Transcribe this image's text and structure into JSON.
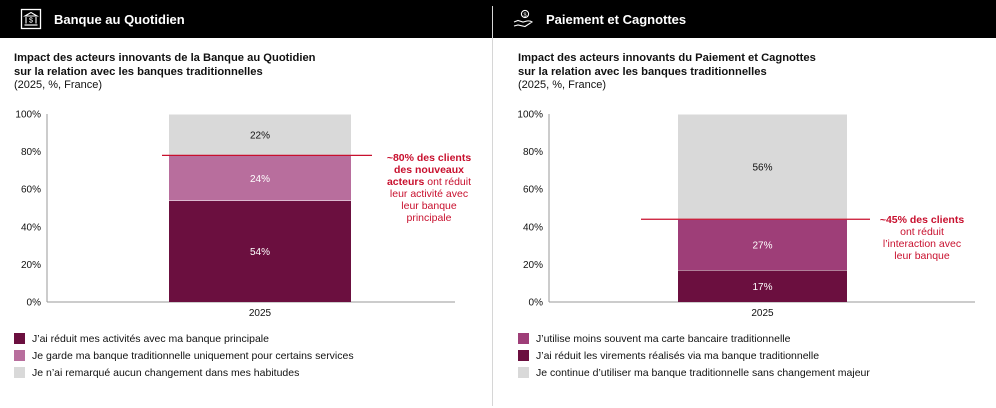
{
  "colors": {
    "dark": "#6b0f3f",
    "mid": "#b86e9d",
    "mid2": "#9e3e78",
    "grey": "#d9d9d9",
    "red": "#c8102e",
    "header_bg": "#000000"
  },
  "panels": [
    {
      "header": {
        "label": "Banque au Quotidien",
        "icon": "bank-icon"
      },
      "title_lines": [
        "Impact des acteurs innovants de la Banque au Quotidien",
        "sur la relation avec les banques traditionnelles"
      ],
      "subtitle": "(2025, %, France)",
      "annotation": {
        "lines": [
          {
            "bold": "~80% des clients",
            "rest": ""
          },
          {
            "bold": "des nouveaux",
            "rest": ""
          },
          {
            "bold": "acteurs",
            "rest": " ont réduit"
          },
          {
            "bold": "",
            "rest": "leur activité avec"
          },
          {
            "bold": "",
            "rest": "leur banque"
          },
          {
            "bold": "",
            "rest": "principale"
          }
        ]
      },
      "legend": [
        {
          "label": "J’ai réduit mes activités avec ma banque principale",
          "color": "#6b0f3f"
        },
        {
          "label": "Je garde ma banque traditionnelle uniquement pour certains services",
          "color": "#b86e9d"
        },
        {
          "label": "Je n’ai remarqué aucun changement dans mes habitudes",
          "color": "#d9d9d9"
        }
      ]
    },
    {
      "header": {
        "label": "Paiement et Cagnottes",
        "icon": "hand-coin-icon"
      },
      "title_lines": [
        "Impact des acteurs innovants du Paiement et Cagnottes",
        "sur la relation avec les banques traditionnelles"
      ],
      "subtitle": "(2025, %, France)",
      "annotation": {
        "lines": [
          {
            "bold": "~45% des clients",
            "rest": ""
          },
          {
            "bold": "",
            "rest": "ont réduit"
          },
          {
            "bold": "",
            "rest": "l’interaction avec"
          },
          {
            "bold": "",
            "rest": "leur banque"
          }
        ]
      },
      "legend": [
        {
          "label": "J’utilise moins souvent ma carte bancaire traditionnelle",
          "color": "#9e3e78"
        },
        {
          "label": "J’ai réduit les virements réalisés via ma banque traditionnelle",
          "color": "#6b0f3f"
        },
        {
          "label": "Je continue d’utiliser ma banque traditionnelle sans changement majeur",
          "color": "#d9d9d9"
        }
      ]
    }
  ],
  "chart_data": [
    {
      "type": "bar",
      "stacked": true,
      "categories": [
        "2025"
      ],
      "series": [
        {
          "name": "J’ai réduit mes activités avec ma banque principale",
          "values": [
            54
          ],
          "label": "54%",
          "color": "#6b0f3f"
        },
        {
          "name": "Je garde ma banque traditionnelle uniquement pour certains services",
          "values": [
            24
          ],
          "label": "24%",
          "color": "#b86e9d"
        },
        {
          "name": "Je n’ai remarqué aucun changement dans mes habitudes",
          "values": [
            22
          ],
          "label": "22%",
          "color": "#d9d9d9"
        }
      ],
      "ylim": [
        0,
        100
      ],
      "yticks": [
        "0%",
        "20%",
        "40%",
        "60%",
        "80%",
        "100%"
      ],
      "yticks_values": [
        0,
        20,
        40,
        60,
        80,
        100
      ],
      "reference_line": 78
    },
    {
      "type": "bar",
      "stacked": true,
      "categories": [
        "2025"
      ],
      "series": [
        {
          "name": "J’ai réduit les virements réalisés via ma banque traditionnelle",
          "values": [
            17
          ],
          "label": "17%",
          "color": "#6b0f3f"
        },
        {
          "name": "J’utilise moins souvent ma carte bancaire traditionnelle",
          "values": [
            27
          ],
          "label": "27%",
          "color": "#9e3e78"
        },
        {
          "name": "Je continue d’utiliser ma banque traditionnelle sans changement majeur",
          "values": [
            56
          ],
          "label": "56%",
          "color": "#d9d9d9"
        }
      ],
      "ylim": [
        0,
        100
      ],
      "yticks": [
        "0%",
        "20%",
        "40%",
        "60%",
        "80%",
        "100%"
      ],
      "yticks_values": [
        0,
        20,
        40,
        60,
        80,
        100
      ],
      "reference_line": 44
    }
  ]
}
